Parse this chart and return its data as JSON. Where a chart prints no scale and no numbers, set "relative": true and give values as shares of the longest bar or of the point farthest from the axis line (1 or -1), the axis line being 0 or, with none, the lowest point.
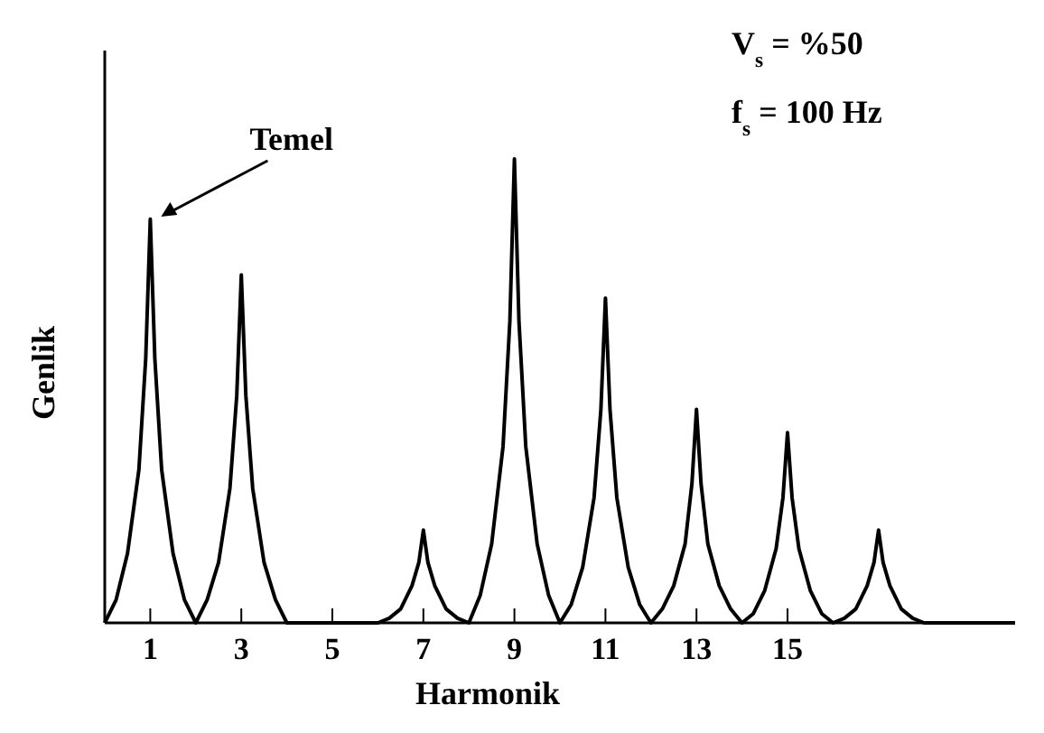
{
  "chart_data": {
    "type": "line",
    "relative": true,
    "xlabel": "Harmonik",
    "ylabel": "Genlik",
    "xlim": [
      0,
      20
    ],
    "xticks": [
      1,
      3,
      5,
      7,
      9,
      11,
      13,
      15
    ],
    "marker": "none",
    "line_style": "solid",
    "grid": false,
    "annotations": [
      "V$_{s}$ = %50",
      "f$_{s}$ = 100 Hz",
      "Temel"
    ],
    "x": [
      0,
      0.25,
      0.5,
      0.75,
      0.9,
      1,
      1.1,
      1.25,
      1.5,
      1.75,
      2,
      2.25,
      2.5,
      2.75,
      2.9,
      3,
      3.1,
      3.25,
      3.5,
      3.75,
      4,
      6,
      6.25,
      6.5,
      6.75,
      6.9,
      7,
      7.1,
      7.25,
      7.5,
      7.75,
      8,
      8.25,
      8.5,
      8.75,
      8.9,
      9,
      9.1,
      9.25,
      9.5,
      9.75,
      10,
      10.25,
      10.5,
      10.75,
      10.9,
      11,
      11.1,
      11.25,
      11.5,
      11.75,
      12,
      12.25,
      12.5,
      12.75,
      12.9,
      13,
      13.1,
      13.25,
      13.5,
      13.75,
      14,
      14.25,
      14.5,
      14.75,
      14.9,
      15,
      15.1,
      15.25,
      15.5,
      15.75,
      16,
      16.25,
      16.5,
      16.75,
      16.9,
      17,
      17.1,
      17.25,
      17.5,
      17.75,
      18,
      20
    ],
    "series": [
      {
        "color": "#000000",
        "values": [
          0,
          0.05,
          0.15,
          0.33,
          0.57,
          0.87,
          0.57,
          0.33,
          0.15,
          0.05,
          0,
          0.05,
          0.13,
          0.29,
          0.49,
          0.75,
          0.49,
          0.29,
          0.13,
          0.05,
          0,
          0,
          0.01,
          0.03,
          0.08,
          0.13,
          0.2,
          0.13,
          0.08,
          0.03,
          0.01,
          0,
          0.06,
          0.17,
          0.38,
          0.65,
          1,
          0.65,
          0.38,
          0.17,
          0.06,
          0,
          0.04,
          0.12,
          0.27,
          0.46,
          0.7,
          0.46,
          0.27,
          0.12,
          0.04,
          0,
          0.03,
          0.08,
          0.17,
          0.3,
          0.46,
          0.3,
          0.17,
          0.08,
          0.03,
          0,
          0.02,
          0.07,
          0.16,
          0.27,
          0.41,
          0.27,
          0.16,
          0.07,
          0.02,
          0,
          0.01,
          0.03,
          0.08,
          0.13,
          0.2,
          0.13,
          0.08,
          0.03,
          0.01,
          0,
          0
        ]
      }
    ]
  }
}
